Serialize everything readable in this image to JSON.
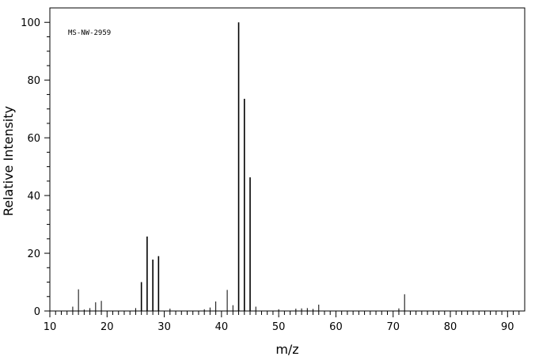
{
  "chart_data": {
    "type": "bar",
    "xlabel": "m/z",
    "ylabel": "Relative Intensity",
    "annotation": "MS-NW-2959",
    "xlim": [
      10,
      93
    ],
    "ylim": [
      0,
      105
    ],
    "x_major_ticks": [
      10,
      20,
      30,
      40,
      50,
      60,
      70,
      80,
      90
    ],
    "y_major_ticks": [
      0,
      20,
      40,
      60,
      80,
      100
    ],
    "x_tick_labels": [
      "10",
      "20",
      "30",
      "40",
      "50",
      "60",
      "70",
      "80",
      "90"
    ],
    "y_tick_labels": [
      "0",
      "20",
      "40",
      "60",
      "80",
      "100"
    ],
    "x_minor_step": 1,
    "y_minor_step": 5,
    "grid": false,
    "legend": "none",
    "peaks": [
      {
        "mz": 14,
        "intensity": 1.5
      },
      {
        "mz": 15,
        "intensity": 7.5
      },
      {
        "mz": 16,
        "intensity": 0.5
      },
      {
        "mz": 17,
        "intensity": 1.0
      },
      {
        "mz": 18,
        "intensity": 3.0
      },
      {
        "mz": 19,
        "intensity": 3.5
      },
      {
        "mz": 25,
        "intensity": 1.0
      },
      {
        "mz": 26,
        "intensity": 10.0
      },
      {
        "mz": 27,
        "intensity": 25.8
      },
      {
        "mz": 28,
        "intensity": 17.8
      },
      {
        "mz": 29,
        "intensity": 19.0
      },
      {
        "mz": 31,
        "intensity": 0.8
      },
      {
        "mz": 37,
        "intensity": 0.6
      },
      {
        "mz": 38,
        "intensity": 1.2
      },
      {
        "mz": 39,
        "intensity": 3.3
      },
      {
        "mz": 41,
        "intensity": 7.3
      },
      {
        "mz": 42,
        "intensity": 2.0
      },
      {
        "mz": 43,
        "intensity": 100.0
      },
      {
        "mz": 44,
        "intensity": 73.5
      },
      {
        "mz": 45,
        "intensity": 46.3
      },
      {
        "mz": 46,
        "intensity": 1.5
      },
      {
        "mz": 50,
        "intensity": 0.6
      },
      {
        "mz": 53,
        "intensity": 0.8
      },
      {
        "mz": 54,
        "intensity": 0.9
      },
      {
        "mz": 55,
        "intensity": 1.0
      },
      {
        "mz": 56,
        "intensity": 0.7
      },
      {
        "mz": 57,
        "intensity": 2.2
      },
      {
        "mz": 71,
        "intensity": 0.9
      },
      {
        "mz": 72,
        "intensity": 5.8
      }
    ],
    "colors": {
      "background": "#ffffff",
      "ink": "#000000"
    }
  }
}
